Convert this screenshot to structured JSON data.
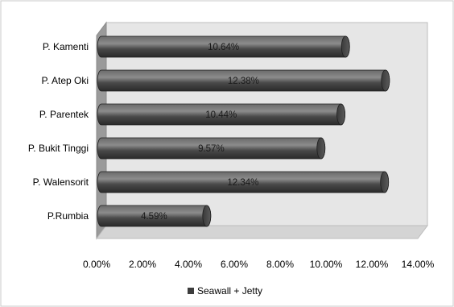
{
  "chart_data": {
    "type": "bar",
    "orientation": "horizontal",
    "style": "3d-cylinder",
    "categories": [
      "P. Kamenti",
      "P. Atep Oki",
      "P. Parentek",
      "P. Bukit Tinggi",
      "P. Walensorit",
      "P.Rumbia"
    ],
    "series": [
      {
        "name": "Seawall + Jetty",
        "values": [
          10.64,
          12.38,
          10.44,
          9.57,
          12.34,
          4.59
        ],
        "labels": [
          "10.64%",
          "12.38%",
          "10.44%",
          "9.57%",
          "12.34%",
          "4.59%"
        ],
        "color": "#3d3d3d"
      }
    ],
    "x_ticks": [
      "0.00%",
      "2.00%",
      "4.00%",
      "6.00%",
      "8.00%",
      "10.00%",
      "12.00%",
      "14.00%"
    ],
    "xlim": [
      0,
      14
    ],
    "grid": false,
    "legend_position": "bottom",
    "colors": {
      "wall": "#e6e6e6",
      "side_wall": "#9a9a9a",
      "floor": "#d4d4d4",
      "bar": "#3d3d3d"
    }
  }
}
